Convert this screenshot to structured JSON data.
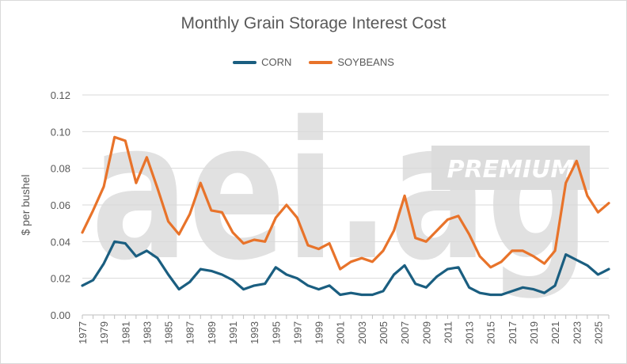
{
  "chart_data": {
    "type": "line",
    "title": "Monthly Grain Storage Interest Cost",
    "ylabel": "$ per bushel",
    "xlabel": "",
    "ylim": [
      0,
      0.12
    ],
    "y_ticks": [
      "0.00",
      "0.02",
      "0.04",
      "0.06",
      "0.08",
      "0.10",
      "0.12"
    ],
    "x": [
      1977,
      1978,
      1979,
      1980,
      1981,
      1982,
      1983,
      1984,
      1985,
      1986,
      1987,
      1988,
      1989,
      1990,
      1991,
      1992,
      1993,
      1994,
      1995,
      1996,
      1997,
      1998,
      1999,
      2000,
      2001,
      2002,
      2003,
      2004,
      2005,
      2006,
      2007,
      2008,
      2009,
      2010,
      2011,
      2012,
      2013,
      2014,
      2015,
      2016,
      2017,
      2018,
      2019,
      2020,
      2021,
      2022,
      2023,
      2024,
      2025,
      2026
    ],
    "x_tick_labels": [
      "1977",
      "1979",
      "1981",
      "1983",
      "1985",
      "1987",
      "1989",
      "1991",
      "1993",
      "1995",
      "1997",
      "1999",
      "2001",
      "2003",
      "2005",
      "2007",
      "2009",
      "2011",
      "2013",
      "2015",
      "2017",
      "2019",
      "2021",
      "2023",
      "2025"
    ],
    "legend_position": "top",
    "grid": "horizontal",
    "series": [
      {
        "name": "CORN",
        "color": "#1a5e80",
        "values": [
          0.016,
          0.019,
          0.028,
          0.04,
          0.039,
          0.032,
          0.035,
          0.031,
          0.022,
          0.014,
          0.018,
          0.025,
          0.024,
          0.022,
          0.019,
          0.014,
          0.016,
          0.017,
          0.026,
          0.022,
          0.02,
          0.016,
          0.014,
          0.016,
          0.011,
          0.012,
          0.011,
          0.011,
          0.013,
          0.022,
          0.027,
          0.017,
          0.015,
          0.021,
          0.025,
          0.026,
          0.015,
          0.012,
          0.011,
          0.011,
          0.013,
          0.015,
          0.014,
          0.012,
          0.016,
          0.033,
          0.03,
          0.027,
          0.022,
          0.025
        ]
      },
      {
        "name": "SOYBEANS",
        "color": "#e8732a",
        "values": [
          0.045,
          0.057,
          0.07,
          0.097,
          0.095,
          0.072,
          0.086,
          0.069,
          0.051,
          0.044,
          0.055,
          0.072,
          0.057,
          0.056,
          0.045,
          0.039,
          0.041,
          0.04,
          0.053,
          0.06,
          0.053,
          0.038,
          0.036,
          0.039,
          0.025,
          0.029,
          0.031,
          0.029,
          0.035,
          0.046,
          0.065,
          0.042,
          0.04,
          0.046,
          0.052,
          0.054,
          0.044,
          0.032,
          0.026,
          0.029,
          0.035,
          0.035,
          0.032,
          0.028,
          0.035,
          0.072,
          0.084,
          0.065,
          0.056,
          0.061
        ]
      }
    ]
  },
  "watermark": {
    "text": "aei.ag",
    "badge": "PREMIUM",
    "color": "#dcdcdc"
  }
}
